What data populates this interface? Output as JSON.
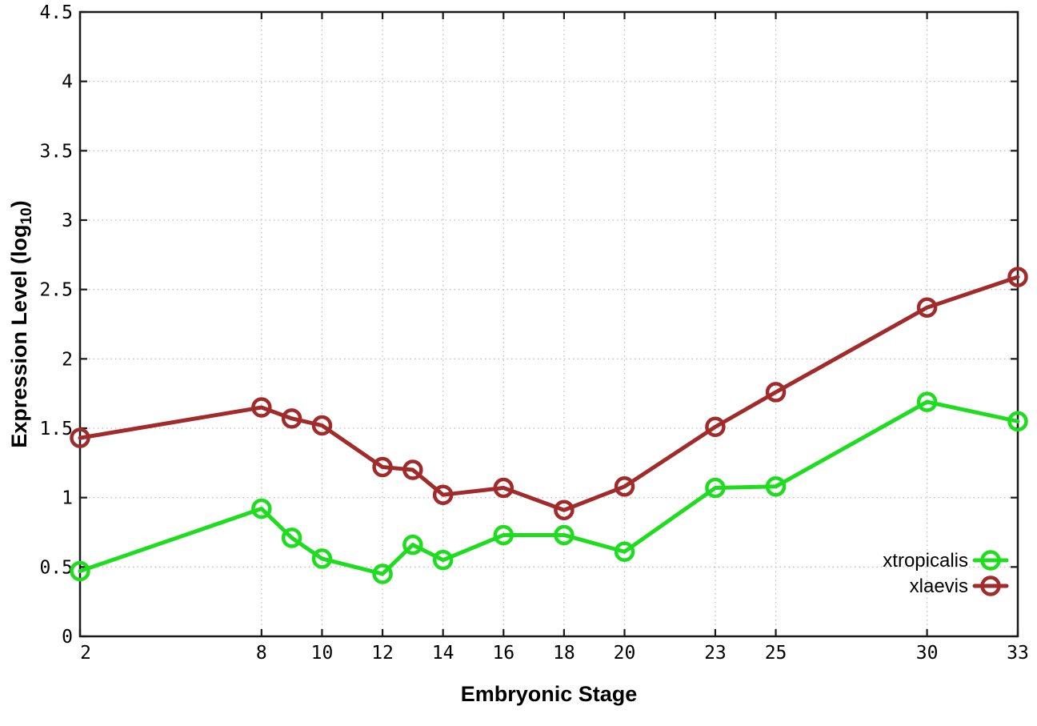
{
  "figure": {
    "xlabel": "Embryonic Stage",
    "ylabel": {
      "prefix": "Expression Level (log",
      "subscript": "10",
      "suffix": ")"
    }
  },
  "chart_data": {
    "type": "line",
    "title": "",
    "xlabel": "Embryonic Stage",
    "ylabel": "Expression Level (log_10)",
    "xlim": [
      2,
      33
    ],
    "ylim": [
      0,
      4.5
    ],
    "x_ticks": [
      2,
      8,
      10,
      12,
      14,
      16,
      18,
      20,
      23,
      25,
      30,
      33
    ],
    "y_ticks": [
      0,
      0.5,
      1,
      1.5,
      2,
      2.5,
      3,
      3.5,
      4,
      4.5
    ],
    "grid": true,
    "marker": "open-circle",
    "x": [
      2,
      8,
      9,
      10,
      12,
      13,
      14,
      16,
      18,
      20,
      23,
      25,
      30,
      33
    ],
    "series": [
      {
        "name": "xtropicalis",
        "color": "#1edc1e",
        "values": [
          0.47,
          0.92,
          0.71,
          0.56,
          0.45,
          0.66,
          0.55,
          0.73,
          0.73,
          0.61,
          1.07,
          1.08,
          1.69,
          1.55
        ]
      },
      {
        "name": "xlaevis",
        "color": "#a12b2b",
        "values": [
          1.43,
          1.65,
          1.57,
          1.52,
          1.22,
          1.2,
          1.02,
          1.07,
          0.91,
          1.08,
          1.51,
          1.76,
          2.37,
          2.59
        ]
      }
    ],
    "legend": {
      "position": "inside-bottom-right",
      "entries": [
        "xtropicalis",
        "xlaevis"
      ]
    }
  },
  "style_colors": {
    "grid": "#bfbfbf",
    "border": "#1a1a1a",
    "tick_label": "#000000"
  }
}
